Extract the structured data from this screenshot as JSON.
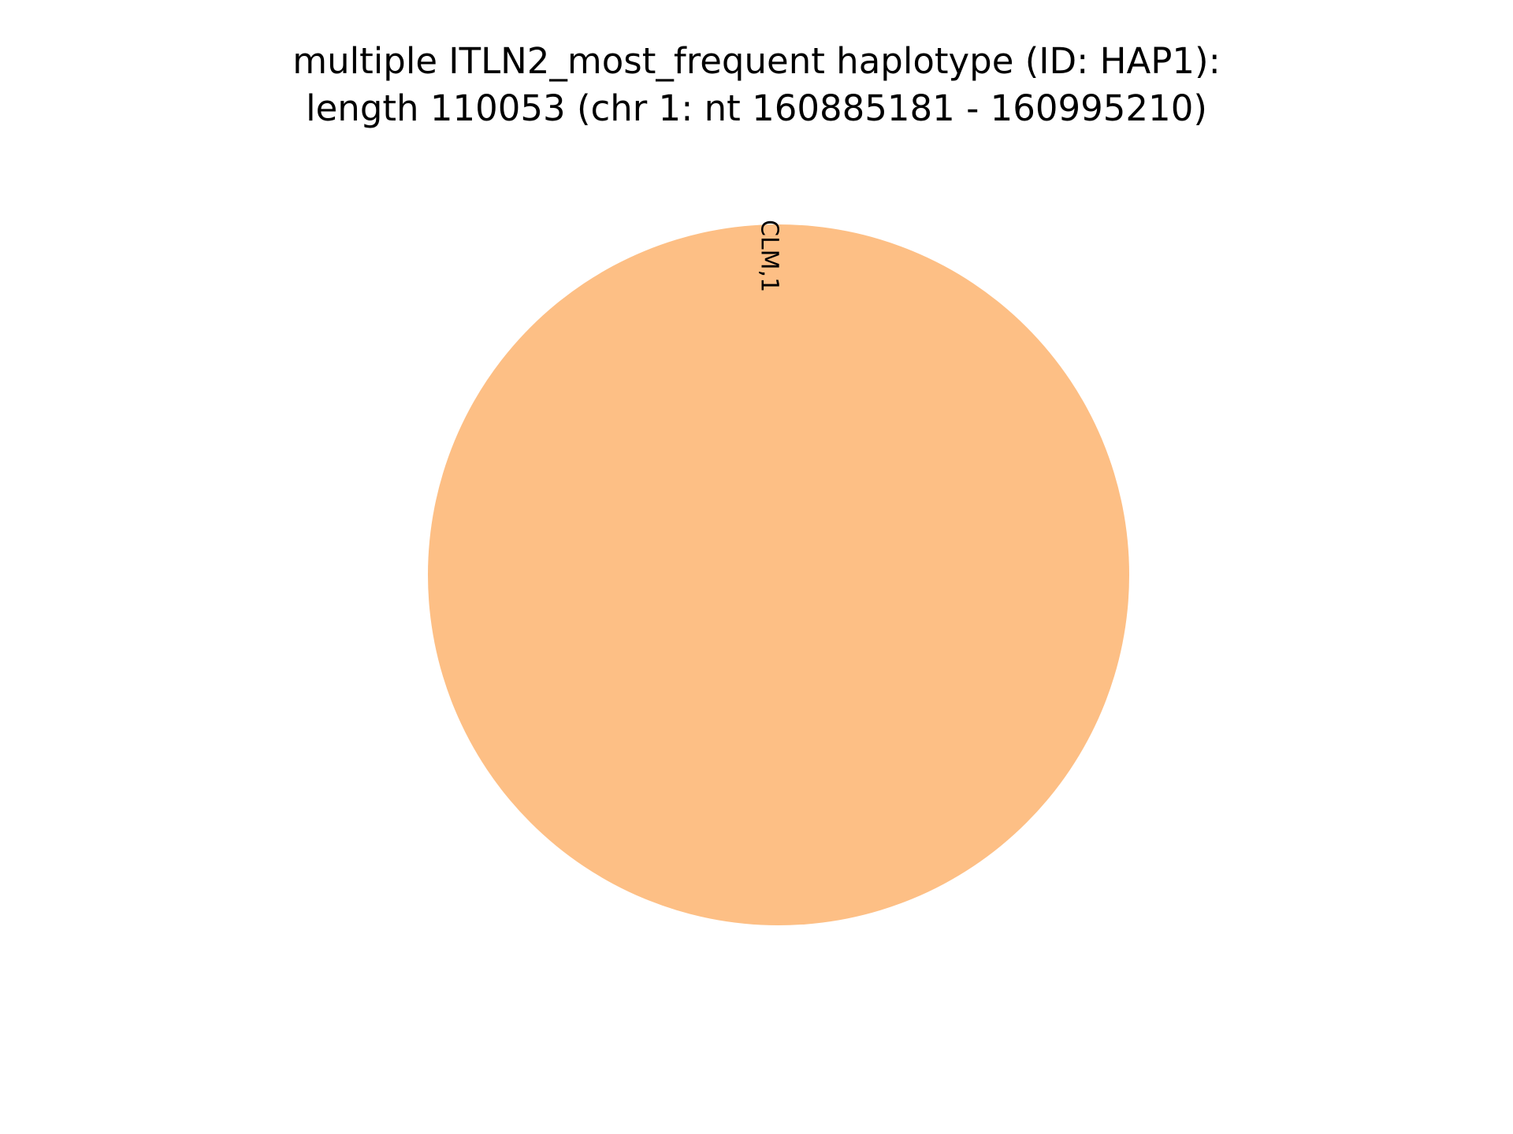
{
  "chart_data": {
    "type": "pie",
    "title": {
      "line1": "multiple ITLN2_most_frequent haplotype (ID: HAP1):",
      "line2": "length 110053 (chr 1: nt 160885181 - 160995210)"
    },
    "slices": [
      {
        "label": "CLM,1",
        "value": 1,
        "color": "#fdbf85"
      }
    ]
  }
}
